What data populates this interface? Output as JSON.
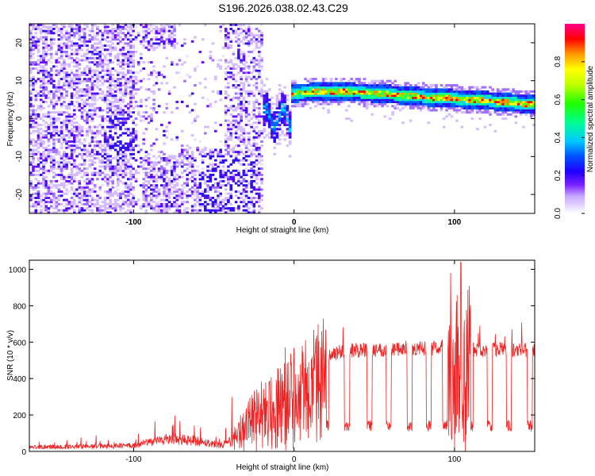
{
  "title": "S196.2026.038.02.43.C29",
  "colors": {
    "snr_line": "#ee2222",
    "colormap": [
      "#ffffff",
      "#e6d6ff",
      "#c9a9ff",
      "#7a22ff",
      "#3000e0",
      "#0000ff",
      "#00c8ff",
      "#00ff80",
      "#40ff00",
      "#ffff00",
      "#ff8000",
      "#ff0000",
      "#ff0080"
    ]
  },
  "chart_data": [
    {
      "type": "heatmap",
      "xlabel": "Height of straight line (km)",
      "ylabel": "Frequency (Hz)",
      "xlim": [
        -165,
        150
      ],
      "ylim": [
        -25,
        25
      ],
      "xticks": [
        -100,
        0,
        100
      ],
      "yticks": [
        -20,
        -10,
        0,
        10,
        20
      ],
      "colorbar": {
        "label": "Normalized spectral amplitude",
        "range": [
          0.0,
          1.0
        ],
        "ticks": [
          "0.0",
          "0.2",
          "0.4",
          "0.6",
          "0.8"
        ]
      },
      "ridge": {
        "x": [
          -3,
          0,
          20,
          50,
          80,
          100,
          120,
          148
        ],
        "frequency_hz": [
          6,
          6.5,
          7,
          6.5,
          5.5,
          5,
          4.5,
          3.5
        ]
      }
    },
    {
      "type": "line",
      "xlabel": "Height of straight line (km)",
      "ylabel": "SNR (10 * v/v)",
      "xlim": [
        -165,
        150
      ],
      "ylim": [
        0,
        1050
      ],
      "xticks": [
        -100,
        0,
        100
      ],
      "yticks": [
        0,
        200,
        400,
        600,
        800,
        1000
      ],
      "series": [
        {
          "baseline": {
            "x": [
              -165,
              -120,
              -100,
              -80,
              -60,
              -45,
              -40,
              -30,
              -20,
              -10,
              0,
              10,
              20,
              30,
              50,
              70,
              90,
              100,
              110,
              130,
              150
            ],
            "y": [
              25,
              30,
              35,
              70,
              60,
              35,
              60,
              180,
              280,
              330,
              400,
              450,
              520,
              550,
              560,
              560,
              570,
              580,
              560,
              560,
              555
            ]
          },
          "dropouts_x": [
            20,
            33,
            47,
            59,
            72,
            84,
            94,
            110,
            122,
            134,
            147
          ],
          "dropout_level": 140,
          "peak": {
            "x": 104,
            "y": 1040
          }
        }
      ]
    }
  ]
}
